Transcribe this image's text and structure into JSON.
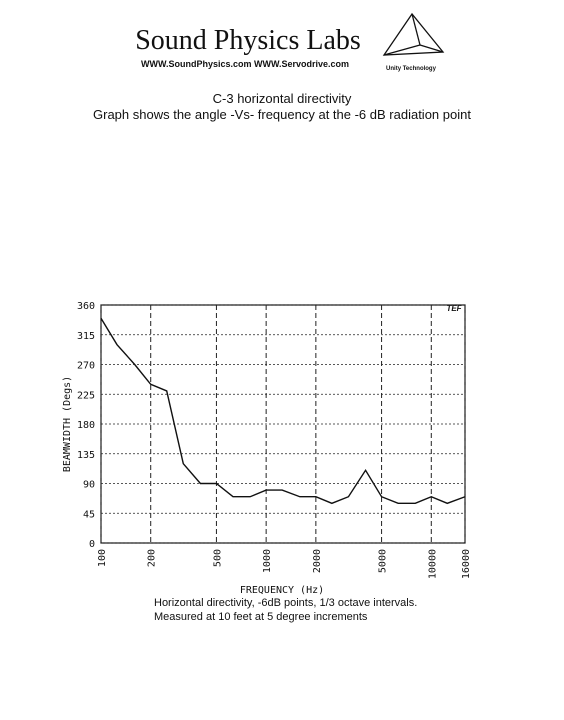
{
  "header": {
    "brand": "Sound Physics Labs",
    "websites": "WWW.SoundPhysics.com  WWW.Servodrive.com",
    "tagline": "Unity Technology"
  },
  "chart_data": {
    "type": "line",
    "title": "C-3 horizontal directivity",
    "subtitle": "Graph shows the angle -Vs- frequency at the -6 dB radiation point",
    "x_label": "FREQUENCY (Hz)",
    "y_label": "BEAMWIDTH (Degs)",
    "logo_text": "TEF",
    "x": [
      100,
      125,
      160,
      200,
      250,
      315,
      400,
      500,
      630,
      800,
      1000,
      1250,
      1600,
      2000,
      2500,
      3150,
      4000,
      5000,
      6300,
      8000,
      10000,
      12500,
      16000
    ],
    "values": [
      340,
      300,
      270,
      240,
      230,
      120,
      90,
      90,
      70,
      70,
      80,
      80,
      70,
      70,
      60,
      70,
      110,
      70,
      60,
      60,
      70,
      60,
      70
    ],
    "color": "#111111",
    "xlim": [
      100,
      16000
    ],
    "xscale": "log",
    "xticks": [
      100,
      200,
      500,
      1000,
      2000,
      5000,
      10000,
      16000
    ],
    "ylim": [
      0,
      360
    ],
    "yticks": [
      0,
      45,
      90,
      135,
      180,
      225,
      270,
      315,
      360
    ],
    "grid": true,
    "caption": [
      "Horizontal directivity, -6dB points, 1/3 octave intervals.",
      "Measured at 10 feet at 5 degree increments"
    ]
  }
}
